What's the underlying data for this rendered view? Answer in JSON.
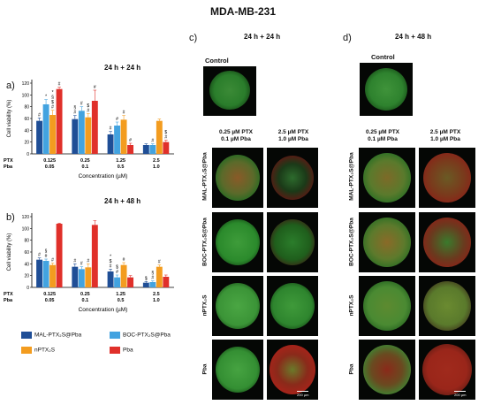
{
  "figure_title": "MDA-MB-231",
  "panels": {
    "a": {
      "letter": "a)",
      "title": "24 h + 24 h"
    },
    "b": {
      "letter": "b)",
      "title": "24 h + 48 h"
    },
    "c": {
      "letter": "c)",
      "title": "24 h + 24 h"
    },
    "d": {
      "letter": "d)",
      "title": "24 h + 48 h"
    }
  },
  "control_label": "Control",
  "col_labels": {
    "low": [
      "0.25 µM PTX",
      "0.1 µM Pba"
    ],
    "high": [
      "2.5 µM PTX",
      "1.0 µM Pba"
    ]
  },
  "row_labels": [
    "MAL-PTX₂S@Pba",
    "BOC-PTX₂S@Pba",
    "nPTX₂S",
    "Pba"
  ],
  "scalebar_label": "200 µm",
  "legend": [
    {
      "name": "MAL-PTX₂S@Pba",
      "color": "#1f4e96"
    },
    {
      "name": "BOC-PTX₂S@Pba",
      "color": "#43a3e0"
    },
    {
      "name": "nPTX₂S",
      "color": "#f39c1f"
    },
    {
      "name": "Pba",
      "color": "#e0302a"
    }
  ],
  "chart_data": [
    {
      "type": "bar",
      "title": "24 h + 24 h",
      "ylabel": "Cell viability (%)",
      "xlabel": "Concentration (µM)",
      "row_labels": [
        "PTX",
        "Pba"
      ],
      "categories": [
        [
          "0.125",
          "0.05"
        ],
        [
          "0.25",
          "0.1"
        ],
        [
          "1.25",
          "0.5"
        ],
        [
          "2.5",
          "1.0"
        ]
      ],
      "ylim": [
        0,
        120
      ],
      "yticks": [
        0,
        20,
        40,
        60,
        80,
        100,
        120
      ],
      "series": [
        {
          "name": "MAL-PTX₂S@Pba",
          "color": "#1f4e96",
          "values": [
            56,
            59,
            33,
            15
          ],
          "errors": [
            5,
            6,
            5,
            2
          ]
        },
        {
          "name": "BOC-PTX₂S@Pba",
          "color": "#43a3e0",
          "values": [
            84,
            73,
            48,
            15
          ],
          "errors": [
            8,
            7,
            6,
            2
          ]
        },
        {
          "name": "nPTX₂S",
          "color": "#f39c1f",
          "values": [
            66,
            62,
            58,
            56
          ],
          "errors": [
            8,
            6,
            7,
            3
          ]
        },
        {
          "name": "Pba",
          "color": "#e0302a",
          "values": [
            110,
            90,
            15,
            20
          ],
          "errors": [
            3,
            18,
            3,
            3
          ]
        }
      ],
      "annotations": [
        [
          "#",
          "§ #",
          "#",
          ""
        ],
        [
          "*",
          "#",
          "#",
          "#"
        ],
        [
          "* § $ #",
          "$ #",
          "#",
          ""
        ],
        [
          "#",
          "#",
          "#",
          "$ #"
        ]
      ]
    },
    {
      "type": "bar",
      "title": "24 h + 48 h",
      "ylabel": "Cell viability (%)",
      "xlabel": "Concentration (µM)",
      "row_labels": [
        "PTX",
        "Pba"
      ],
      "categories": [
        [
          "0.125",
          "0.05"
        ],
        [
          "0.25",
          "0.1"
        ],
        [
          "1.25",
          "0.5"
        ],
        [
          "2.5",
          "1.0"
        ]
      ],
      "ylim": [
        0,
        120
      ],
      "yticks": [
        0,
        20,
        40,
        60,
        80,
        100,
        120
      ],
      "series": [
        {
          "name": "MAL-PTX₂S@Pba",
          "color": "#1f4e96",
          "values": [
            47,
            35,
            27,
            8
          ],
          "errors": [
            3,
            5,
            4,
            2
          ]
        },
        {
          "name": "BOC-PTX₂S@Pba",
          "color": "#43a3e0",
          "values": [
            45,
            31,
            17,
            9
          ],
          "errors": [
            3,
            4,
            4,
            2
          ]
        },
        {
          "name": "nPTX₂S",
          "color": "#f39c1f",
          "values": [
            38,
            34,
            38,
            35
          ],
          "errors": [
            3,
            6,
            4,
            3
          ]
        },
        {
          "name": "Pba",
          "color": "#e0302a",
          "values": [
            108,
            106,
            17,
            18
          ],
          "errors": [
            1,
            7,
            3,
            3
          ]
        }
      ],
      "annotations": [
        [
          "#",
          "#",
          "* $ #",
          "$"
        ],
        [
          "§ #",
          "#",
          "$ #",
          "§ #"
        ],
        [
          "#",
          "#",
          "#",
          "#"
        ],
        [
          "",
          "",
          "",
          ""
        ]
      ]
    }
  ]
}
